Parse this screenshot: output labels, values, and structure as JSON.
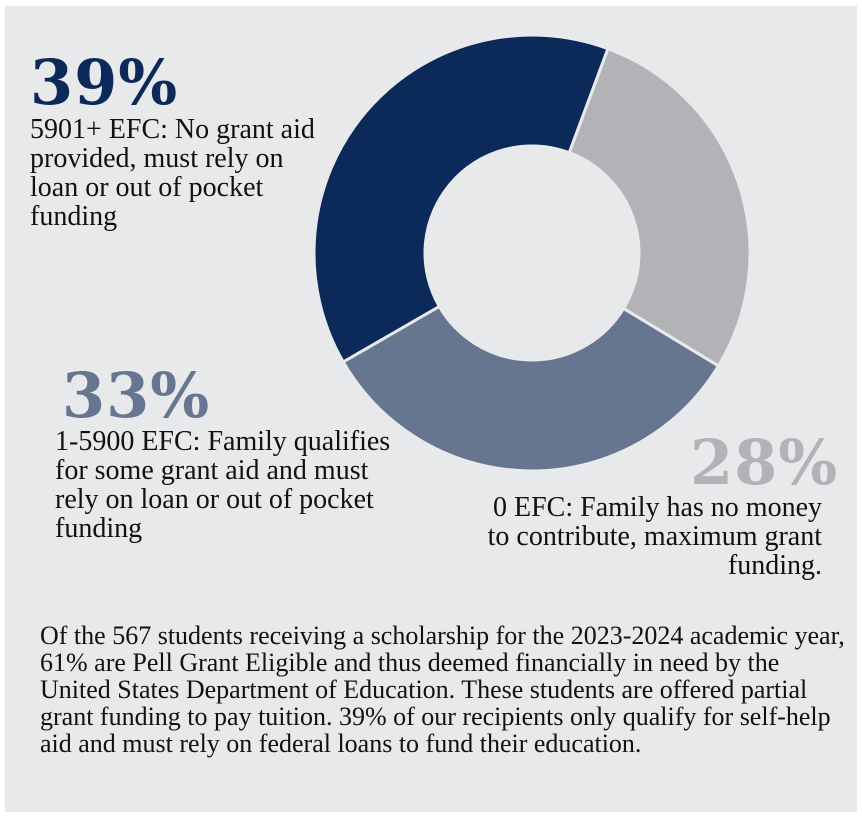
{
  "chart_data": {
    "type": "pie",
    "categories": [
      "5901+ EFC",
      "0 EFC",
      "1-5900 EFC"
    ],
    "values": [
      39,
      28,
      33
    ],
    "colors": [
      "#0c2a59",
      "#b1b3b7",
      "#667691"
    ],
    "labels": [
      {
        "percent": "39%",
        "description": "5901+ EFC: No grant aid provided, must rely on loan or out of pocket funding"
      },
      {
        "percent": "28%",
        "description": "0 EFC: Family has no money to contribute, maximum grant funding."
      },
      {
        "percent": "33%",
        "description": "1-5900 EFC: Family qualifies for some grant aid and must rely on loan or out of pocket funding"
      }
    ],
    "hole": "donut"
  },
  "footnote": "Of the 567 students receiving a scholarship for the 2023-2024 academic year, 61% are Pell Grant Eligible and thus deemed financially in need by the United States Department of Education. These students are offered partial grant funding to pay tuition.  39% of our recipients only qualify for self-help aid and must rely on federal loans to fund their education."
}
